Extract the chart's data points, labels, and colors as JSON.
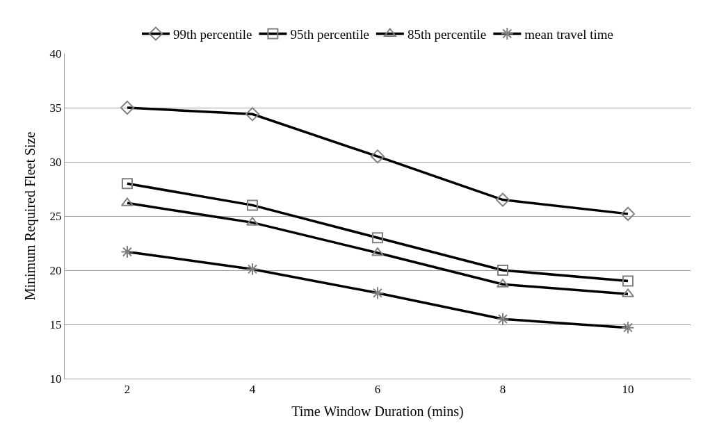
{
  "chart_data": {
    "type": "line",
    "xlabel": "Time Window Duration (mins)",
    "ylabel": "Minimum Required Fleet Size",
    "x": [
      2,
      4,
      6,
      8,
      10
    ],
    "xlim": [
      1,
      11
    ],
    "xticks": [
      2,
      4,
      6,
      8,
      10
    ],
    "ylim": [
      10,
      40
    ],
    "yticks": [
      10,
      15,
      20,
      25,
      30,
      35,
      40
    ],
    "grid": "y",
    "legend": "top",
    "line_style": "solid",
    "series": [
      {
        "name": "99th percentile",
        "color": "#000000",
        "marker": "diamond",
        "values": [
          35,
          34.4,
          30.5,
          26.5,
          25.2
        ]
      },
      {
        "name": "95th percentile",
        "color": "#000000",
        "marker": "square",
        "values": [
          28,
          26,
          23,
          20,
          19
        ]
      },
      {
        "name": "85th percentile",
        "color": "#000000",
        "marker": "triangle",
        "values": [
          26.2,
          24.4,
          21.6,
          18.7,
          17.8
        ]
      },
      {
        "name": "mean travel time",
        "color": "#000000",
        "marker": "cross",
        "values": [
          21.7,
          20.1,
          17.9,
          15.5,
          14.7
        ]
      }
    ]
  }
}
